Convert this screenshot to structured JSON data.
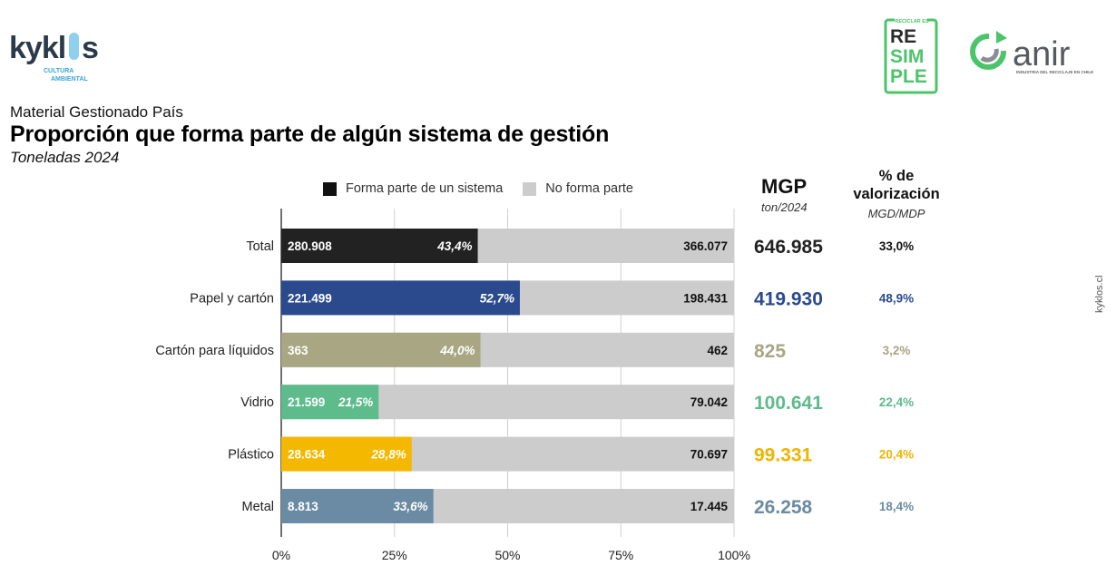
{
  "header": {
    "kicker": "Material Gestionado País",
    "title": "Proporción que forma parte de algún sistema de gestión",
    "subtitle": "Toneladas 2024"
  },
  "logos": {
    "kyklos": {
      "name": "kyklos",
      "tagline_1": "CULTURA",
      "tagline_2": "AMBIENTAL"
    },
    "resimple": {
      "top": "RECICLAR ES",
      "line1": "RE",
      "line2": "SIM",
      "line3": "PLE"
    },
    "anir": {
      "name": "anir",
      "tagline": "INDUSTRIA DEL RECICLAJE EN CHILE"
    }
  },
  "side_text": "kyklos.cl",
  "columns": {
    "mgp_header": "MGP",
    "mgp_sub": "ton/2024",
    "valor_header_1": "% de",
    "valor_header_2": "valorización",
    "valor_sub": "MGD/MDP"
  },
  "colors": {
    "forma_parte_total": "#222222",
    "no_forma_parte": "#cccccc"
  },
  "chart_data": {
    "type": "bar",
    "orientation": "horizontal",
    "stacked": true,
    "legend": [
      "Forma parte de un sistema",
      "No forma parte"
    ],
    "legend_position": "top",
    "x_ticks": [
      "0%",
      "25%",
      "50%",
      "75%",
      "100%"
    ],
    "xlim": [
      0,
      100
    ],
    "grid": true,
    "rows": [
      {
        "category": "Total",
        "forma_parte": "280.908",
        "no_forma_parte": "366.077",
        "pct": 43.4,
        "pct_label": "43,4%",
        "mgp": "646.985",
        "valorizacion": "33,0%",
        "color": "#222222",
        "text_color": "#222222"
      },
      {
        "category": "Papel y cartón",
        "forma_parte": "221.499",
        "no_forma_parte": "198.431",
        "pct": 52.7,
        "pct_label": "52,7%",
        "mgp": "419.930",
        "valorizacion": "48,9%",
        "color": "#2b4a8e",
        "text_color": "#2b4a8e"
      },
      {
        "category": "Cartón para líquidos",
        "forma_parte": "363",
        "no_forma_parte": "462",
        "pct": 44.0,
        "pct_label": "44,0%",
        "mgp": "825",
        "valorizacion": "3,2%",
        "color": "#a8a683",
        "text_color": "#a8a683"
      },
      {
        "category": "Vidrio",
        "forma_parte": "21.599",
        "no_forma_parte": "79.042",
        "pct": 21.5,
        "pct_label": "21,5%",
        "mgp": "100.641",
        "valorizacion": "22,4%",
        "color": "#5dbb8c",
        "text_color": "#5dbb8c"
      },
      {
        "category": "Plástico",
        "forma_parte": "28.634",
        "no_forma_parte": "70.697",
        "pct": 28.8,
        "pct_label": "28,8%",
        "mgp": "99.331",
        "valorizacion": "20,4%",
        "color": "#f5b800",
        "text_color": "#f0b400"
      },
      {
        "category": "Metal",
        "forma_parte": "8.813",
        "no_forma_parte": "17.445",
        "pct": 33.6,
        "pct_label": "33,6%",
        "mgp": "26.258",
        "valorizacion": "18,4%",
        "color": "#6a8ba3",
        "text_color": "#6a8ba3"
      }
    ]
  }
}
